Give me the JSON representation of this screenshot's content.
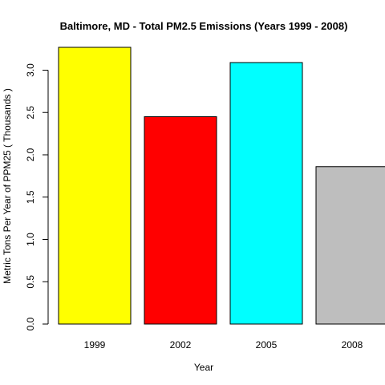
{
  "chart_data": {
    "type": "bar",
    "title": "Baltimore, MD - Total PM2.5 Emissions (Years 1999 - 2008)",
    "xlabel": "Year",
    "ylabel": "Metric Tons Per Year of PPM25 ( Thousands )",
    "categories": [
      "1999",
      "2002",
      "2005",
      "2008"
    ],
    "values": [
      3.27,
      2.45,
      3.09,
      1.86
    ],
    "colors": [
      "#ffff00",
      "#ff0000",
      "#00ffff",
      "#bebebe"
    ],
    "ylim": [
      0,
      3.27
    ],
    "yticks": [
      0.0,
      0.5,
      1.0,
      1.5,
      2.0,
      2.5,
      3.0
    ],
    "ytick_labels": [
      "0.0",
      "0.5",
      "1.0",
      "1.5",
      "2.0",
      "2.5",
      "3.0"
    ],
    "grid": false,
    "legend": "none"
  }
}
